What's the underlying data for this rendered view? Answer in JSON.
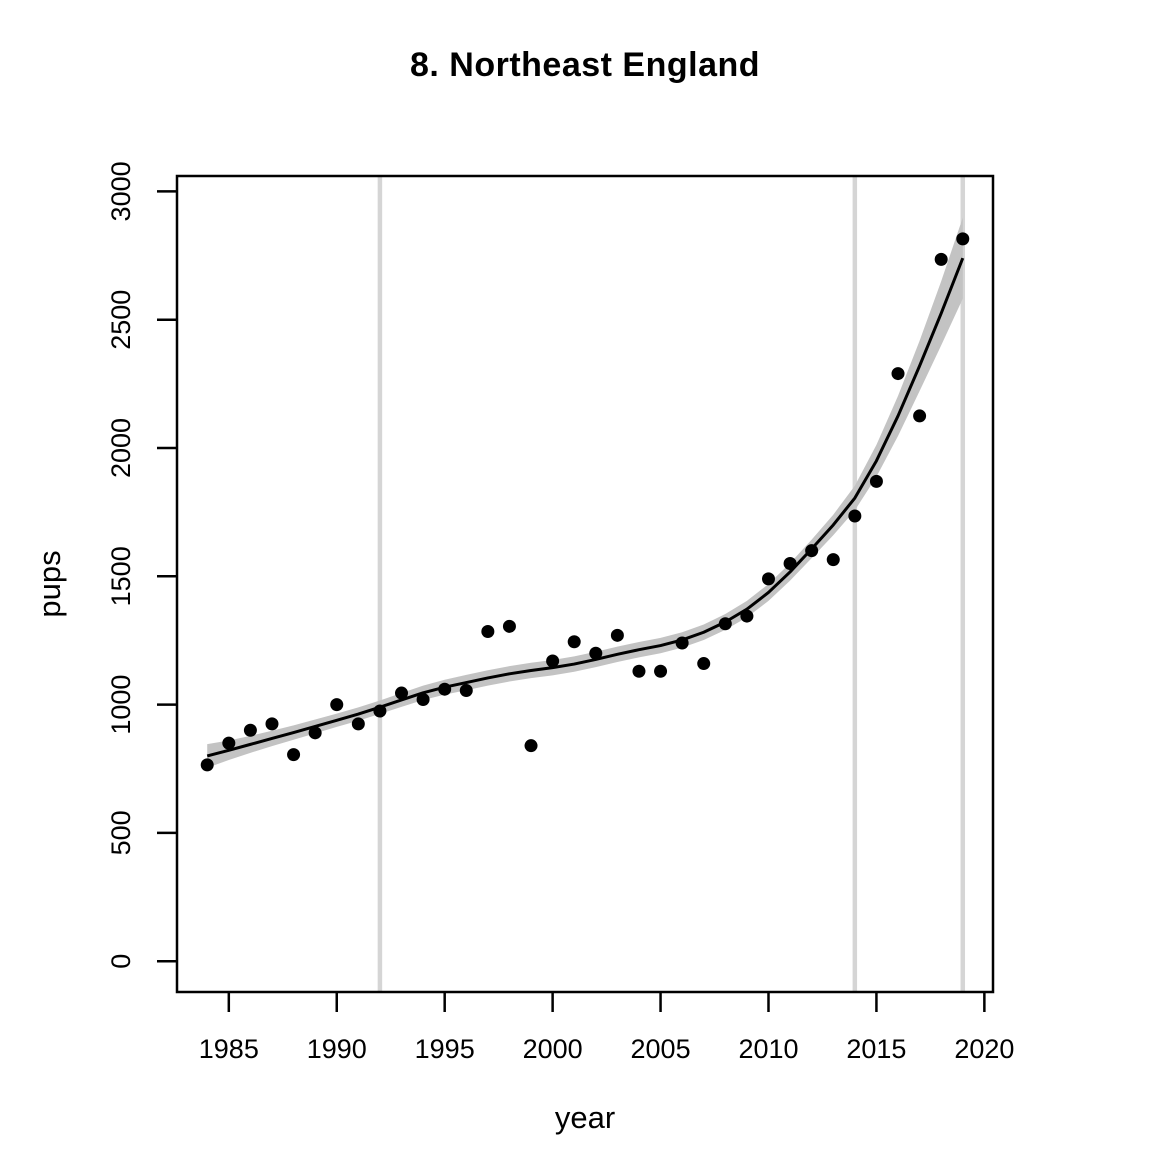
{
  "chart_data": {
    "type": "scatter",
    "title": "8. Northeast England",
    "xlabel": "year",
    "ylabel": "pups",
    "x_ticks": [
      1985,
      1990,
      1995,
      2000,
      2005,
      2010,
      2015,
      2020
    ],
    "y_ticks": [
      0,
      500,
      1000,
      1500,
      2000,
      2500,
      3000
    ],
    "xlim": [
      1982.6,
      2020.4
    ],
    "ylim": [
      -120,
      3060
    ],
    "grid": false,
    "legend": "none",
    "colors": {
      "points": "#000000",
      "trend_line": "#000000",
      "confidence_band": "#c3c3c3",
      "reference_lines": "#d5d5d5",
      "axes": "#000000",
      "background": "#ffffff"
    },
    "reference_vlines": {
      "x": [
        1992,
        2014,
        2019
      ]
    },
    "x": [
      1984,
      1985,
      1986,
      1987,
      1988,
      1989,
      1990,
      1991,
      1992,
      1993,
      1994,
      1995,
      1996,
      1997,
      1998,
      1999,
      2000,
      2001,
      2002,
      2003,
      2004,
      2005,
      2006,
      2007,
      2008,
      2009,
      2010,
      2011,
      2012,
      2013,
      2014,
      2015,
      2016,
      2017,
      2018,
      2019
    ],
    "series": [
      {
        "name": "observed pup counts",
        "type": "scatter",
        "marker": "filled-circle",
        "values": [
          765,
          850,
          900,
          925,
          805,
          890,
          1000,
          925,
          975,
          1045,
          1020,
          1060,
          1055,
          1285,
          1305,
          840,
          1170,
          1245,
          1200,
          1270,
          1130,
          1130,
          1240,
          1160,
          1315,
          1345,
          1490,
          1550,
          1600,
          1565,
          1735,
          1870,
          2290,
          2125,
          2735,
          2815
        ]
      },
      {
        "name": "smoothed trend",
        "type": "line",
        "values": [
          800,
          822,
          845,
          868,
          891,
          915,
          939,
          963,
          990,
          1018,
          1046,
          1068,
          1086,
          1104,
          1120,
          1133,
          1144,
          1158,
          1176,
          1196,
          1214,
          1230,
          1252,
          1282,
          1322,
          1372,
          1437,
          1517,
          1607,
          1700,
          1805,
          1950,
          2125,
          2320,
          2525,
          2740
        ]
      },
      {
        "name": "confidence band half-width",
        "type": "band",
        "values": [
          46,
          38,
          33,
          30,
          28,
          27,
          26,
          26,
          26,
          27,
          28,
          29,
          30,
          30,
          30,
          30,
          30,
          30,
          30,
          30,
          30,
          30,
          30,
          30,
          31,
          32,
          33,
          34,
          36,
          40,
          48,
          62,
          78,
          98,
          125,
          158
        ]
      }
    ]
  }
}
